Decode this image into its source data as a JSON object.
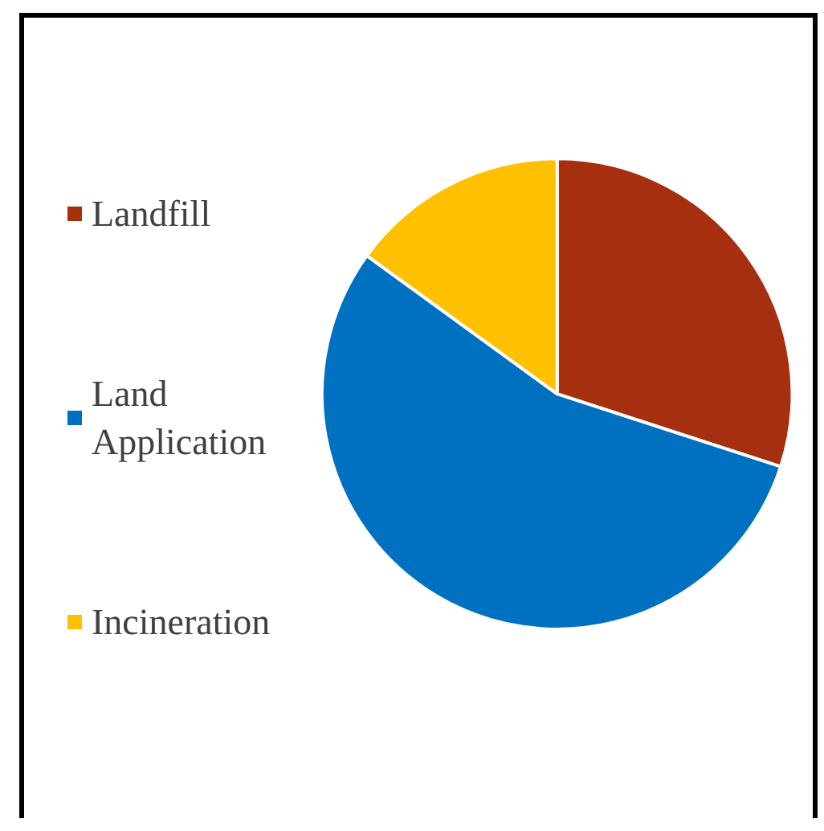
{
  "chart_data": {
    "type": "pie",
    "categories": [
      "Landfill",
      "Land Application",
      "Incineration"
    ],
    "values": [
      30,
      55,
      15
    ],
    "colors": [
      "#a52f0e",
      "#0070c0",
      "#ffc000"
    ],
    "legend": "left"
  }
}
